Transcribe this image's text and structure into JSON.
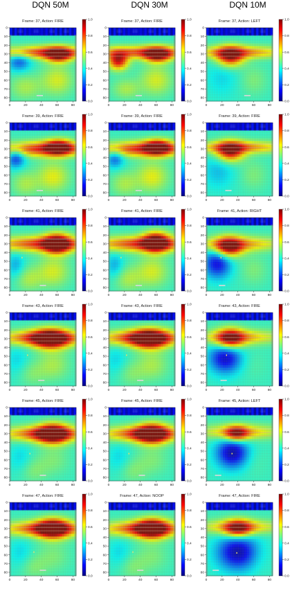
{
  "column_titles": [
    "DQN 50M",
    "DQN 30M",
    "DQN 10M"
  ],
  "colorbar": {
    "ticks": [
      "0.0",
      "0.2",
      "0.4",
      "0.6",
      "0.8",
      "1.0"
    ],
    "range": [
      0.0,
      1.0
    ],
    "colormap": "jet",
    "colors": [
      "#00007f",
      "#0000ff",
      "#007fff",
      "#00ffff",
      "#7fff7f",
      "#ffff00",
      "#ff7f00",
      "#ff0000",
      "#7f0000"
    ]
  },
  "chart_data": {
    "type": "heatmap",
    "description_units": "saliency 0-1 over 84x84 Atari frame",
    "xticks": [
      "0",
      "20",
      "40",
      "60",
      "80"
    ],
    "yticks": [
      "0",
      "10",
      "20",
      "30",
      "40",
      "50",
      "60",
      "70",
      "80"
    ],
    "xlim": [
      0,
      84
    ],
    "ylim": [
      84,
      0
    ],
    "rows": [
      {
        "panels": [
          {
            "title": "Frame: 37, Action: FIRE",
            "paddle_x": 38,
            "ball": null,
            "blobs": [
              {
                "x": 42,
                "y": 28,
                "rx": 42,
                "ry": 5,
                "v": 0.82
              },
              {
                "x": 62,
                "y": 31,
                "rx": 12,
                "ry": 6,
                "v": 0.9
              },
              {
                "x": 12,
                "y": 38,
                "rx": 10,
                "ry": 8,
                "v": 0.2
              },
              {
                "x": 60,
                "y": 60,
                "rx": 14,
                "ry": 12,
                "v": 0.6
              },
              {
                "x": 20,
                "y": 68,
                "rx": 14,
                "ry": 10,
                "v": 0.55
              }
            ]
          },
          {
            "title": "Frame: 37, Action: FIRE",
            "paddle_x": 38,
            "ball": null,
            "blobs": [
              {
                "x": 42,
                "y": 28,
                "rx": 42,
                "ry": 5,
                "v": 0.8
              },
              {
                "x": 62,
                "y": 31,
                "rx": 12,
                "ry": 6,
                "v": 0.92
              },
              {
                "x": 12,
                "y": 38,
                "rx": 9,
                "ry": 7,
                "v": 0.9
              },
              {
                "x": 60,
                "y": 60,
                "rx": 14,
                "ry": 12,
                "v": 0.6
              },
              {
                "x": 22,
                "y": 70,
                "rx": 12,
                "ry": 8,
                "v": 0.55
              }
            ]
          },
          {
            "title": "Frame: 37, Action: LEFT",
            "paddle_x": 52,
            "ball": null,
            "blobs": [
              {
                "x": 42,
                "y": 28,
                "rx": 42,
                "ry": 5,
                "v": 0.75
              },
              {
                "x": 30,
                "y": 33,
                "rx": 12,
                "ry": 8,
                "v": 0.9
              },
              {
                "x": 20,
                "y": 55,
                "rx": 14,
                "ry": 16,
                "v": 0.35
              },
              {
                "x": 60,
                "y": 60,
                "rx": 12,
                "ry": 12,
                "v": 0.5
              }
            ]
          }
        ]
      },
      {
        "panels": [
          {
            "title": "Frame: 39, Action: FIRE",
            "paddle_x": 38,
            "ball": null,
            "blobs": [
              {
                "x": 42,
                "y": 30,
                "rx": 42,
                "ry": 6,
                "v": 0.85
              },
              {
                "x": 62,
                "y": 28,
                "rx": 12,
                "ry": 6,
                "v": 0.9
              },
              {
                "x": 8,
                "y": 40,
                "rx": 8,
                "ry": 8,
                "v": 0.15
              },
              {
                "x": 55,
                "y": 62,
                "rx": 14,
                "ry": 12,
                "v": 0.62
              },
              {
                "x": 20,
                "y": 70,
                "rx": 12,
                "ry": 10,
                "v": 0.55
              }
            ]
          },
          {
            "title": "Frame: 39, Action: FIRE",
            "paddle_x": 38,
            "ball": null,
            "blobs": [
              {
                "x": 42,
                "y": 30,
                "rx": 42,
                "ry": 6,
                "v": 0.85
              },
              {
                "x": 62,
                "y": 28,
                "rx": 12,
                "ry": 6,
                "v": 0.9
              },
              {
                "x": 8,
                "y": 40,
                "rx": 8,
                "ry": 8,
                "v": 0.2
              },
              {
                "x": 55,
                "y": 62,
                "rx": 14,
                "ry": 12,
                "v": 0.62
              },
              {
                "x": 20,
                "y": 70,
                "rx": 12,
                "ry": 10,
                "v": 0.55
              }
            ]
          },
          {
            "title": "Frame: 39, Action: FIRE",
            "paddle_x": 28,
            "ball": null,
            "blobs": [
              {
                "x": 42,
                "y": 28,
                "rx": 42,
                "ry": 5,
                "v": 0.75
              },
              {
                "x": 30,
                "y": 33,
                "rx": 12,
                "ry": 8,
                "v": 0.9
              },
              {
                "x": 15,
                "y": 55,
                "rx": 14,
                "ry": 14,
                "v": 0.32
              },
              {
                "x": 60,
                "y": 60,
                "rx": 12,
                "ry": 12,
                "v": 0.5
              }
            ]
          }
        ]
      },
      {
        "panels": [
          {
            "title": "Frame: 41, Action: FIRE",
            "paddle_x": 42,
            "ball": [
              15,
              45
            ],
            "blobs": [
              {
                "x": 42,
                "y": 30,
                "rx": 42,
                "ry": 6,
                "v": 0.85
              },
              {
                "x": 60,
                "y": 30,
                "rx": 12,
                "ry": 8,
                "v": 0.95
              },
              {
                "x": 8,
                "y": 55,
                "rx": 8,
                "ry": 10,
                "v": 0.3
              },
              {
                "x": 55,
                "y": 62,
                "rx": 14,
                "ry": 12,
                "v": 0.6
              },
              {
                "x": 24,
                "y": 70,
                "rx": 12,
                "ry": 10,
                "v": 0.55
              }
            ]
          },
          {
            "title": "Frame: 41, Action: FIRE",
            "paddle_x": 38,
            "ball": [
              15,
              45
            ],
            "blobs": [
              {
                "x": 42,
                "y": 30,
                "rx": 42,
                "ry": 6,
                "v": 0.85
              },
              {
                "x": 60,
                "y": 28,
                "rx": 12,
                "ry": 8,
                "v": 0.95
              },
              {
                "x": 8,
                "y": 55,
                "rx": 8,
                "ry": 10,
                "v": 0.3
              },
              {
                "x": 55,
                "y": 62,
                "rx": 14,
                "ry": 12,
                "v": 0.6
              },
              {
                "x": 24,
                "y": 70,
                "rx": 12,
                "ry": 10,
                "v": 0.55
              }
            ]
          },
          {
            "title": "Frame: 41, Action: RIGHT",
            "paddle_x": 20,
            "ball": [
              18,
              45
            ],
            "blobs": [
              {
                "x": 40,
                "y": 30,
                "rx": 38,
                "ry": 6,
                "v": 0.72
              },
              {
                "x": 28,
                "y": 34,
                "rx": 12,
                "ry": 8,
                "v": 0.92
              },
              {
                "x": 14,
                "y": 52,
                "rx": 12,
                "ry": 12,
                "v": 0.1
              },
              {
                "x": 60,
                "y": 60,
                "rx": 12,
                "ry": 12,
                "v": 0.5
              }
            ]
          }
        ]
      },
      {
        "panels": [
          {
            "title": "Frame: 43, Action: FIRE",
            "paddle_x": 40,
            "ball": [
              22,
              48
            ],
            "blobs": [
              {
                "x": 42,
                "y": 29,
                "rx": 38,
                "ry": 6,
                "v": 0.85
              },
              {
                "x": 52,
                "y": 30,
                "rx": 16,
                "ry": 8,
                "v": 0.95
              },
              {
                "x": 10,
                "y": 55,
                "rx": 10,
                "ry": 12,
                "v": 0.35
              },
              {
                "x": 55,
                "y": 60,
                "rx": 14,
                "ry": 12,
                "v": 0.55
              },
              {
                "x": 28,
                "y": 70,
                "rx": 12,
                "ry": 10,
                "v": 0.5
              }
            ]
          },
          {
            "title": "Frame: 43, Action: FIRE",
            "paddle_x": 40,
            "ball": [
              22,
              48
            ],
            "blobs": [
              {
                "x": 42,
                "y": 29,
                "rx": 38,
                "ry": 6,
                "v": 0.85
              },
              {
                "x": 52,
                "y": 30,
                "rx": 16,
                "ry": 8,
                "v": 0.95
              },
              {
                "x": 10,
                "y": 55,
                "rx": 10,
                "ry": 12,
                "v": 0.35
              },
              {
                "x": 55,
                "y": 60,
                "rx": 14,
                "ry": 12,
                "v": 0.55
              },
              {
                "x": 28,
                "y": 70,
                "rx": 12,
                "ry": 10,
                "v": 0.5
              }
            ]
          },
          {
            "title": "Frame: 43, Action: FIRE",
            "paddle_x": 22,
            "ball": [
              25,
              48
            ],
            "blobs": [
              {
                "x": 42,
                "y": 28,
                "rx": 36,
                "ry": 6,
                "v": 0.7
              },
              {
                "x": 30,
                "y": 30,
                "rx": 12,
                "ry": 8,
                "v": 0.9
              },
              {
                "x": 24,
                "y": 52,
                "rx": 14,
                "ry": 12,
                "v": 0.08
              },
              {
                "x": 60,
                "y": 60,
                "rx": 12,
                "ry": 12,
                "v": 0.45
              }
            ]
          }
        ]
      },
      {
        "panels": [
          {
            "title": "Frame: 45, Action: FIRE",
            "paddle_x": 42,
            "ball": [
              25,
              52
            ],
            "blobs": [
              {
                "x": 44,
                "y": 30,
                "rx": 36,
                "ry": 6,
                "v": 0.85
              },
              {
                "x": 55,
                "y": 30,
                "rx": 14,
                "ry": 8,
                "v": 0.95
              },
              {
                "x": 14,
                "y": 58,
                "rx": 10,
                "ry": 12,
                "v": 0.35
              },
              {
                "x": 55,
                "y": 60,
                "rx": 14,
                "ry": 12,
                "v": 0.5
              },
              {
                "x": 30,
                "y": 72,
                "rx": 12,
                "ry": 10,
                "v": 0.5
              }
            ]
          },
          {
            "title": "Frame: 45, Action: FIRE",
            "paddle_x": 42,
            "ball": [
              25,
              52
            ],
            "blobs": [
              {
                "x": 44,
                "y": 30,
                "rx": 36,
                "ry": 6,
                "v": 0.85
              },
              {
                "x": 55,
                "y": 30,
                "rx": 14,
                "ry": 8,
                "v": 0.95
              },
              {
                "x": 14,
                "y": 58,
                "rx": 10,
                "ry": 12,
                "v": 0.35
              },
              {
                "x": 55,
                "y": 60,
                "rx": 14,
                "ry": 12,
                "v": 0.5
              },
              {
                "x": 30,
                "y": 72,
                "rx": 12,
                "ry": 10,
                "v": 0.5
              }
            ]
          },
          {
            "title": "Frame: 45, Action: LEFT",
            "paddle_x": 15,
            "ball": [
              32,
              52
            ],
            "blobs": [
              {
                "x": 42,
                "y": 28,
                "rx": 36,
                "ry": 6,
                "v": 0.7
              },
              {
                "x": 38,
                "y": 30,
                "rx": 10,
                "ry": 6,
                "v": 0.85
              },
              {
                "x": 33,
                "y": 52,
                "rx": 14,
                "ry": 12,
                "v": 0.05
              },
              {
                "x": 60,
                "y": 62,
                "rx": 12,
                "ry": 12,
                "v": 0.45
              }
            ]
          }
        ]
      },
      {
        "panels": [
          {
            "title": "Frame: 47, Action: FIRE",
            "paddle_x": 42,
            "ball": [
              30,
              56
            ],
            "blobs": [
              {
                "x": 44,
                "y": 30,
                "rx": 36,
                "ry": 6,
                "v": 0.85
              },
              {
                "x": 55,
                "y": 30,
                "rx": 14,
                "ry": 8,
                "v": 0.95
              },
              {
                "x": 14,
                "y": 58,
                "rx": 10,
                "ry": 12,
                "v": 0.35
              },
              {
                "x": 55,
                "y": 62,
                "rx": 14,
                "ry": 12,
                "v": 0.5
              },
              {
                "x": 30,
                "y": 74,
                "rx": 12,
                "ry": 10,
                "v": 0.5
              }
            ]
          },
          {
            "title": "Frame: 47, Action: NOOP",
            "paddle_x": 40,
            "ball": [
              30,
              56
            ],
            "blobs": [
              {
                "x": 44,
                "y": 30,
                "rx": 36,
                "ry": 6,
                "v": 0.85
              },
              {
                "x": 55,
                "y": 30,
                "rx": 14,
                "ry": 8,
                "v": 0.95
              },
              {
                "x": 14,
                "y": 58,
                "rx": 10,
                "ry": 12,
                "v": 0.35
              },
              {
                "x": 55,
                "y": 62,
                "rx": 14,
                "ry": 12,
                "v": 0.5
              },
              {
                "x": 30,
                "y": 74,
                "rx": 12,
                "ry": 10,
                "v": 0.5
              }
            ]
          },
          {
            "title": "Frame: 47, Action: FIRE",
            "paddle_x": 12,
            "ball": [
              38,
              57
            ],
            "blobs": [
              {
                "x": 42,
                "y": 28,
                "rx": 36,
                "ry": 6,
                "v": 0.7
              },
              {
                "x": 40,
                "y": 30,
                "rx": 12,
                "ry": 7,
                "v": 0.88
              },
              {
                "x": 40,
                "y": 57,
                "rx": 18,
                "ry": 14,
                "v": 0.05
              },
              {
                "x": 64,
                "y": 62,
                "rx": 10,
                "ry": 12,
                "v": 0.45
              }
            ]
          }
        ]
      }
    ]
  }
}
